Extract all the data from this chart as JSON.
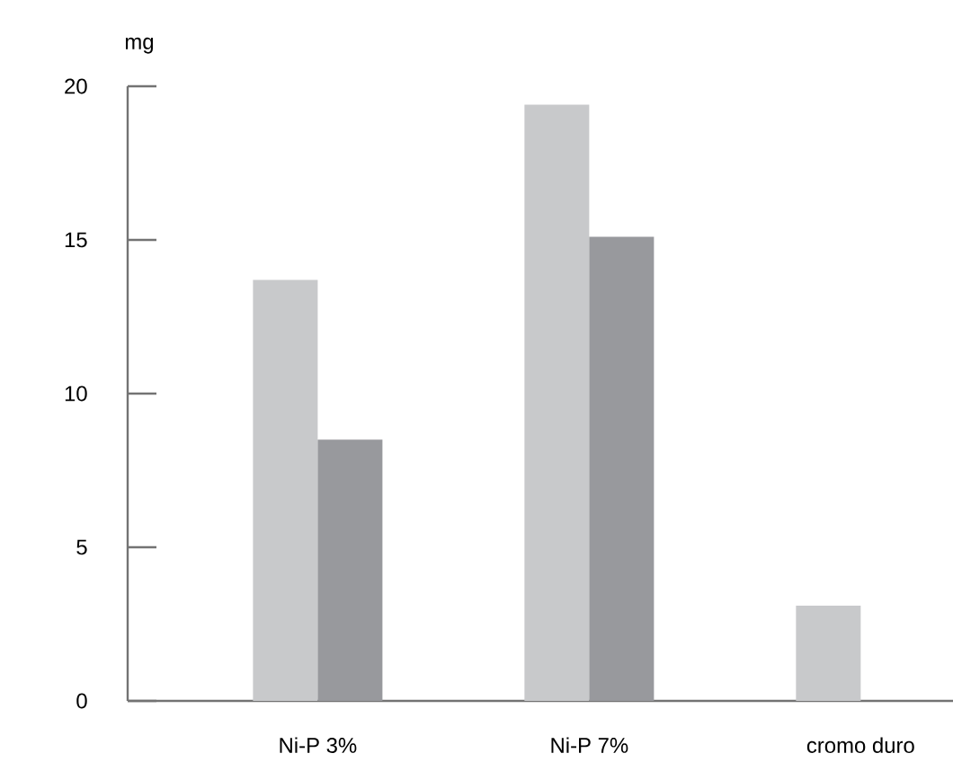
{
  "chart_data": {
    "type": "bar",
    "ylabel": "mg",
    "categories": [
      "Ni-P 3%",
      "Ni-P 7%",
      "cromo duro"
    ],
    "series": [
      {
        "color": "#c8c9cb",
        "values": [
          13.7,
          19.4,
          3.1
        ]
      },
      {
        "color": "#98999d",
        "values": [
          8.5,
          15.1,
          null
        ]
      }
    ],
    "ylim": [
      0,
      20
    ],
    "yticks": [
      0,
      5,
      10,
      15,
      20
    ]
  }
}
